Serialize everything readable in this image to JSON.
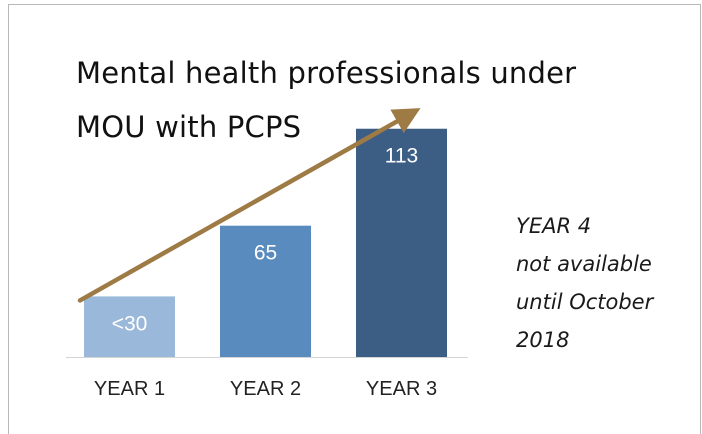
{
  "chart_data": {
    "type": "bar",
    "title_lines": [
      "Mental health professionals under",
      "MOU with PCPS"
    ],
    "categories": [
      "YEAR 1",
      "YEAR 2",
      "YEAR 3"
    ],
    "values": [
      30,
      65,
      113
    ],
    "value_labels": [
      "<30",
      "65",
      "113"
    ],
    "bar_colors": [
      "#9ab9da",
      "#5a8bbf",
      "#3c5e85"
    ],
    "arrow_color": "#9e7a45",
    "note_lines": [
      "YEAR 4",
      "not available",
      "until October",
      "2018"
    ],
    "xlabel": "",
    "ylabel": "",
    "ylim": [
      0,
      120
    ],
    "grid": false,
    "legend": "none"
  }
}
